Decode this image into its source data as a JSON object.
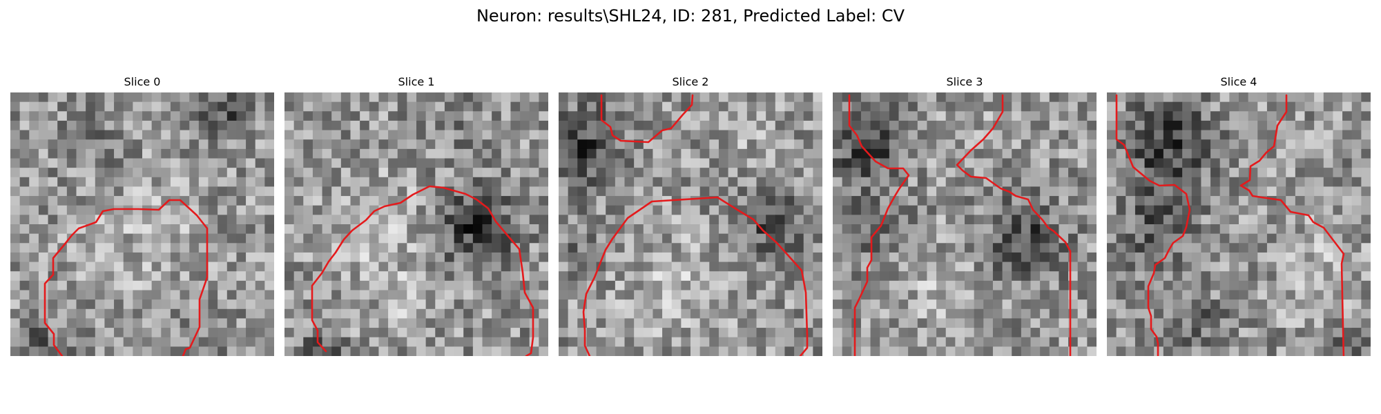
{
  "figure": {
    "title": "Neuron: results\\SHL24, ID: 281, Predicted Label: CV"
  },
  "panels": [
    {
      "label": "Slice 0"
    },
    {
      "label": "Slice 1"
    },
    {
      "label": "Slice 2"
    },
    {
      "label": "Slice 3"
    },
    {
      "label": "Slice 4"
    }
  ],
  "colors": {
    "contour": "#e41a1c",
    "background": "#ffffff"
  },
  "image_description_hint": "grayscale microscopy patches with red segmentation contours"
}
